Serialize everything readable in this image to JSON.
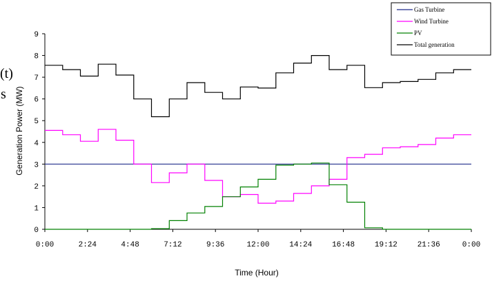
{
  "chart_data": {
    "type": "line",
    "step": true,
    "xlabel": "Time (Hour)",
    "ylabel": "Generation Power (MW)",
    "x_ticks": [
      "0:00",
      "2:24",
      "4:48",
      "7:12",
      "9:36",
      "12:00",
      "14:24",
      "16:48",
      "19:12",
      "21:36",
      "0:00"
    ],
    "y_ticks": [
      "0",
      "1",
      "2",
      "3",
      "4",
      "5",
      "6",
      "7",
      "8",
      "9"
    ],
    "ylim": [
      0,
      9
    ],
    "xlim_hours": [
      0,
      24
    ],
    "grid": false,
    "legend_position": "top-right",
    "series": [
      {
        "name": "Gas Turbine",
        "color": "#1f2a8a",
        "values": [
          3,
          3,
          3,
          3,
          3,
          3,
          3,
          3,
          3,
          3,
          3,
          3,
          3,
          3,
          3,
          3,
          3,
          3,
          3,
          3,
          3,
          3,
          3,
          3
        ]
      },
      {
        "name": "Wind Turbine",
        "color": "#ff00ff",
        "values": [
          4.55,
          4.35,
          4.05,
          4.6,
          4.1,
          3.0,
          2.15,
          2.6,
          3.0,
          2.25,
          1.5,
          1.6,
          1.2,
          1.3,
          1.65,
          2.0,
          2.3,
          3.3,
          3.45,
          3.75,
          3.8,
          3.9,
          4.2,
          4.35
        ]
      },
      {
        "name": "PV",
        "color": "#008000",
        "values": [
          0,
          0,
          0,
          0,
          0,
          0,
          0.03,
          0.4,
          0.75,
          1.05,
          1.5,
          1.95,
          2.3,
          2.95,
          3.0,
          3.05,
          2.05,
          1.25,
          0.07,
          0,
          0,
          0,
          0,
          0
        ]
      },
      {
        "name": "Total generation",
        "color": "#000000",
        "values": [
          7.55,
          7.35,
          7.05,
          7.6,
          7.1,
          6.0,
          5.18,
          6.0,
          6.75,
          6.3,
          6.0,
          6.55,
          6.5,
          7.2,
          7.65,
          8.0,
          7.35,
          7.55,
          6.52,
          6.75,
          6.8,
          6.9,
          7.2,
          7.35
        ]
      }
    ]
  },
  "fragments": {
    "paren_t": "(t)",
    "letter_s": "s"
  }
}
